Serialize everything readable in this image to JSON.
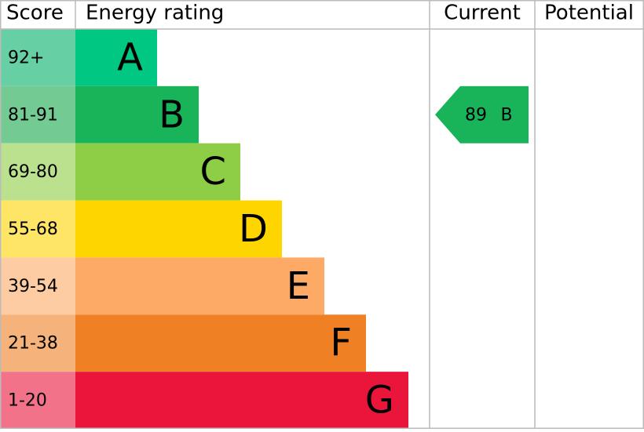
{
  "header": {
    "score": "Score",
    "rating": "Energy rating",
    "current": "Current",
    "potential": "Potential"
  },
  "bands": [
    {
      "range": "92+",
      "letter": "A",
      "color": "#00c781",
      "light": "#66cfa4"
    },
    {
      "range": "81-91",
      "letter": "B",
      "color": "#19b459",
      "light": "#73cb93"
    },
    {
      "range": "69-80",
      "letter": "C",
      "color": "#8dce46",
      "light": "#bbe18e"
    },
    {
      "range": "55-68",
      "letter": "D",
      "color": "#ffd500",
      "light": "#ffe566"
    },
    {
      "range": "39-54",
      "letter": "E",
      "color": "#fcaa65",
      "light": "#fdcca3"
    },
    {
      "range": "21-38",
      "letter": "F",
      "color": "#ef8023",
      "light": "#f5b37b"
    },
    {
      "range": "1-20",
      "letter": "G",
      "color": "#e9153b",
      "light": "#f27389"
    }
  ],
  "current": {
    "score": 89,
    "letter": "B"
  }
}
